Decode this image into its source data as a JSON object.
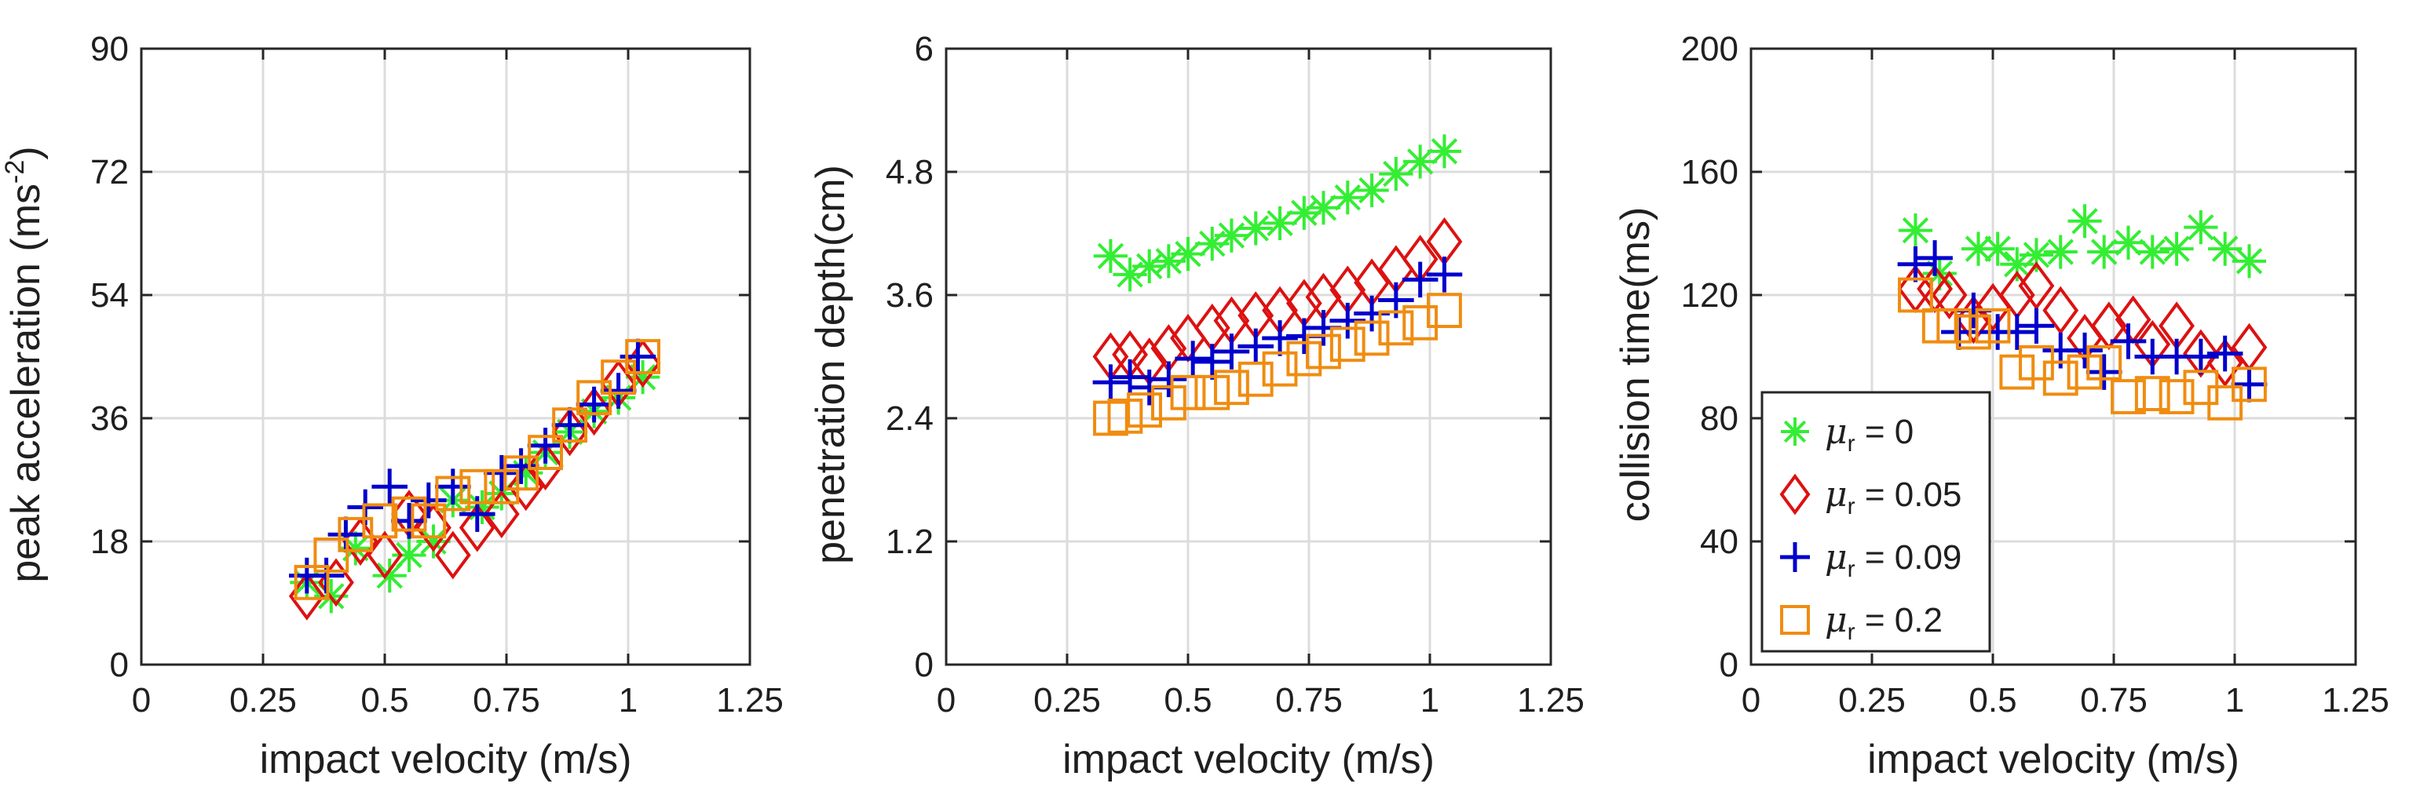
{
  "colors": {
    "mu_r_0": "#33ee33",
    "mu_r_0.05": "#dd1111",
    "mu_r_0.09": "#0000cc",
    "mu_r_0.2": "#f08c10",
    "grid": "#dcdcdc",
    "axes": "#262626"
  },
  "legend": {
    "items": [
      {
        "key": "mu_r_0",
        "symbol": "μ",
        "subscript": "r",
        "text": " = 0",
        "marker": "asterisk"
      },
      {
        "key": "mu_r_0.05",
        "symbol": "μ",
        "subscript": "r",
        "text": " = 0.05",
        "marker": "diamond"
      },
      {
        "key": "mu_r_0.09",
        "symbol": "μ",
        "subscript": "r",
        "text": " = 0.09",
        "marker": "plus"
      },
      {
        "key": "mu_r_0.2",
        "symbol": "μ",
        "subscript": "r",
        "text": " = 0.2",
        "marker": "square"
      }
    ]
  },
  "chart_data": [
    {
      "type": "scatter",
      "xlabel": "impact velocity (m/s)",
      "ylabel": "peak acceleration (ms",
      "ylabel_sup": "-2",
      "ylabel_tail": ")",
      "xlim": [
        0,
        1.25
      ],
      "ylim": [
        0,
        90
      ],
      "xticks": [
        0,
        0.25,
        0.5,
        0.75,
        1,
        1.25
      ],
      "xtick_labels": [
        "0",
        "0.25",
        "0.5",
        "0.75",
        "1",
        "1.25"
      ],
      "yticks": [
        0,
        18,
        36,
        54,
        72,
        90
      ],
      "ytick_labels": [
        "0",
        "18",
        "36",
        "54",
        "72",
        "90"
      ],
      "grid": true,
      "series": [
        {
          "key": "mu_r_0",
          "x": [
            0.34,
            0.39,
            0.44,
            0.51,
            0.55,
            0.6,
            0.64,
            0.7,
            0.74,
            0.79,
            0.83,
            0.88,
            0.93,
            0.98,
            1.03
          ],
          "y": [
            12,
            10,
            17,
            13,
            16,
            18,
            24,
            23,
            25,
            28,
            31,
            34,
            37,
            39,
            42
          ]
        },
        {
          "key": "mu_r_0.05",
          "x": [
            0.34,
            0.4,
            0.45,
            0.5,
            0.55,
            0.6,
            0.64,
            0.69,
            0.74,
            0.79,
            0.83,
            0.88,
            0.93,
            0.98,
            1.03
          ],
          "y": [
            10,
            12,
            18,
            16,
            22,
            20,
            16,
            20,
            22,
            26,
            29,
            34,
            37,
            41,
            44
          ]
        },
        {
          "key": "mu_r_0.09",
          "x": [
            0.34,
            0.38,
            0.42,
            0.46,
            0.51,
            0.55,
            0.59,
            0.64,
            0.69,
            0.74,
            0.78,
            0.83,
            0.88,
            0.93,
            0.98,
            1.02
          ],
          "y": [
            13,
            13,
            19,
            23,
            26,
            21,
            24,
            26,
            22,
            28,
            29,
            32,
            35,
            38,
            40,
            45
          ]
        },
        {
          "key": "mu_r_0.2",
          "x": [
            0.35,
            0.39,
            0.44,
            0.49,
            0.55,
            0.59,
            0.64,
            0.69,
            0.74,
            0.78,
            0.83,
            0.88,
            0.93,
            0.98,
            1.03
          ],
          "y": [
            12,
            16,
            19,
            21,
            22,
            21,
            25,
            26,
            26,
            28,
            31,
            35,
            39,
            42,
            45
          ]
        }
      ]
    },
    {
      "type": "scatter",
      "xlabel": "impact velocity (m/s)",
      "ylabel": "penetration depth(cm)",
      "ylabel_sup": "",
      "ylabel_tail": "",
      "xlim": [
        0,
        1.25
      ],
      "ylim": [
        0,
        6
      ],
      "xticks": [
        0,
        0.25,
        0.5,
        0.75,
        1,
        1.25
      ],
      "xtick_labels": [
        "0",
        "0.25",
        "0.5",
        "0.75",
        "1",
        "1.25"
      ],
      "yticks": [
        0,
        1.2,
        2.4,
        3.6,
        4.8,
        6
      ],
      "ytick_labels": [
        "0",
        "1.2",
        "2.4",
        "3.6",
        "4.8",
        "6"
      ],
      "grid": true,
      "series": [
        {
          "key": "mu_r_0",
          "x": [
            0.34,
            0.38,
            0.42,
            0.46,
            0.5,
            0.55,
            0.59,
            0.64,
            0.69,
            0.74,
            0.78,
            0.83,
            0.88,
            0.93,
            0.98,
            1.03
          ],
          "y": [
            3.98,
            3.8,
            3.88,
            3.93,
            4.0,
            4.1,
            4.18,
            4.25,
            4.3,
            4.4,
            4.45,
            4.55,
            4.62,
            4.78,
            4.9,
            5.0
          ]
        },
        {
          "key": "mu_r_0.05",
          "x": [
            0.34,
            0.38,
            0.42,
            0.46,
            0.5,
            0.55,
            0.59,
            0.64,
            0.69,
            0.74,
            0.78,
            0.83,
            0.88,
            0.93,
            0.98,
            1.03
          ],
          "y": [
            3.0,
            3.02,
            2.95,
            3.08,
            3.18,
            3.28,
            3.35,
            3.4,
            3.45,
            3.52,
            3.58,
            3.65,
            3.72,
            3.85,
            3.95,
            4.12
          ]
        },
        {
          "key": "mu_r_0.09",
          "x": [
            0.34,
            0.38,
            0.42,
            0.46,
            0.51,
            0.55,
            0.59,
            0.64,
            0.69,
            0.74,
            0.78,
            0.83,
            0.88,
            0.93,
            0.98,
            1.03
          ],
          "y": [
            2.75,
            2.8,
            2.7,
            2.78,
            2.98,
            2.95,
            3.05,
            3.1,
            3.18,
            3.2,
            3.28,
            3.35,
            3.42,
            3.55,
            3.75,
            3.8
          ]
        },
        {
          "key": "mu_r_0.2",
          "x": [
            0.34,
            0.37,
            0.41,
            0.46,
            0.5,
            0.55,
            0.59,
            0.64,
            0.69,
            0.74,
            0.78,
            0.83,
            0.88,
            0.93,
            0.98,
            1.03
          ],
          "y": [
            2.4,
            2.42,
            2.48,
            2.55,
            2.65,
            2.65,
            2.7,
            2.78,
            2.88,
            2.98,
            3.05,
            3.12,
            3.18,
            3.28,
            3.33,
            3.45
          ]
        }
      ]
    },
    {
      "type": "scatter",
      "xlabel": "impact velocity (m/s)",
      "ylabel": "collision time(ms)",
      "ylabel_sup": "",
      "ylabel_tail": "",
      "xlim": [
        0,
        1.25
      ],
      "ylim": [
        0,
        200
      ],
      "xticks": [
        0,
        0.25,
        0.5,
        0.75,
        1,
        1.25
      ],
      "xtick_labels": [
        "0",
        "0.25",
        "0.5",
        "0.75",
        "1",
        "1.25"
      ],
      "yticks": [
        0,
        40,
        80,
        120,
        160,
        200
      ],
      "ytick_labels": [
        "0",
        "40",
        "80",
        "120",
        "160",
        "200"
      ],
      "grid": true,
      "legend_position": "lower-left",
      "series": [
        {
          "key": "mu_r_0",
          "x": [
            0.34,
            0.39,
            0.47,
            0.51,
            0.55,
            0.59,
            0.64,
            0.69,
            0.73,
            0.78,
            0.83,
            0.88,
            0.93,
            0.98,
            1.03
          ],
          "y": [
            141,
            127,
            135,
            135,
            130,
            133,
            134,
            144,
            134,
            137,
            134,
            135,
            142,
            135,
            131
          ]
        },
        {
          "key": "mu_r_0.05",
          "x": [
            0.34,
            0.38,
            0.41,
            0.46,
            0.5,
            0.55,
            0.59,
            0.64,
            0.69,
            0.74,
            0.79,
            0.83,
            0.88,
            0.93,
            0.98,
            1.03
          ],
          "y": [
            122,
            122,
            120,
            112,
            116,
            120,
            123,
            115,
            106,
            110,
            112,
            104,
            110,
            101,
            98,
            103
          ]
        },
        {
          "key": "mu_r_0.09",
          "x": [
            0.34,
            0.38,
            0.43,
            0.46,
            0.51,
            0.55,
            0.59,
            0.64,
            0.69,
            0.73,
            0.78,
            0.83,
            0.88,
            0.93,
            0.98,
            1.03
          ],
          "y": [
            130,
            132,
            108,
            115,
            108,
            108,
            110,
            102,
            102,
            95,
            105,
            100,
            100,
            100,
            101,
            91
          ]
        },
        {
          "key": "mu_r_0.2",
          "x": [
            0.34,
            0.39,
            0.42,
            0.46,
            0.5,
            0.55,
            0.59,
            0.64,
            0.69,
            0.73,
            0.78,
            0.83,
            0.88,
            0.93,
            0.98,
            1.03
          ],
          "y": [
            120,
            110,
            110,
            108,
            110,
            95,
            98,
            93,
            95,
            98,
            87,
            88,
            87,
            90,
            85,
            91
          ]
        }
      ]
    }
  ]
}
